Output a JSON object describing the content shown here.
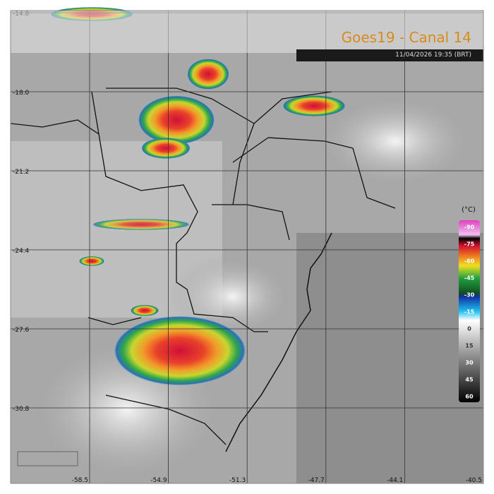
{
  "header": {
    "title": "Goes19 - Canal 14",
    "timestamp": "11/04/2026 19:35 (BRT)"
  },
  "map": {
    "latitude_labels": [
      "-14.8",
      "-18.0",
      "-21.2",
      "-24.4",
      "-27.6",
      "-30.8"
    ],
    "longitude_labels": [
      "-58.5",
      "-54.9",
      "-51.3",
      "-47.7",
      "-44.1",
      "-40.5"
    ]
  },
  "colorbar": {
    "unit": "(°C)",
    "labels": [
      "-90",
      "-75",
      "-60",
      "-45",
      "-30",
      "-15",
      "0",
      "15",
      "30",
      "45",
      "60"
    ]
  }
}
